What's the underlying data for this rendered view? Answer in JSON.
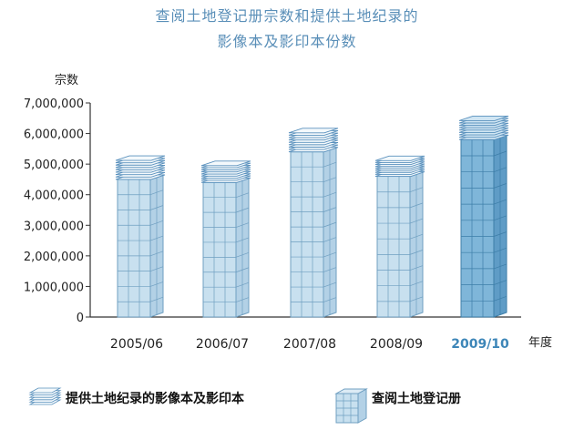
{
  "chart_data": {
    "type": "bar",
    "title_lines": [
      "查阅土地登记册宗数和提供土地纪录的",
      "影像本及影印本份数"
    ],
    "ylabel": "宗数",
    "xlabel": "年度",
    "ylim": [
      0,
      7000000
    ],
    "yticks": [
      0,
      1000000,
      2000000,
      3000000,
      4000000,
      5000000,
      6000000,
      7000000
    ],
    "ytick_labels": [
      "0",
      "1,000,000",
      "2,000,000",
      "3,000,000",
      "4,000,000",
      "5,000,000",
      "6,000,000",
      "7,000,000"
    ],
    "categories": [
      "2005/06",
      "2006/07",
      "2007/08",
      "2008/09",
      "2009/10"
    ],
    "highlight_category": "2009/10",
    "grid": false,
    "legend_position": "bottom",
    "series": [
      {
        "name": "查阅土地登记册",
        "values": [
          4500000,
          4400000,
          5400000,
          4600000,
          5800000
        ]
      },
      {
        "name": "提供土地纪录的影像本及影印本",
        "values": [
          700000,
          620000,
          700000,
          580000,
          700000
        ]
      }
    ],
    "colors": {
      "bar_face": "#c8e0ef",
      "bar_side": "#b3d1e6",
      "bar_top": "#dcebf5",
      "bar_line": "#6f9fc1",
      "bar_face_hl": "#7fb6d9",
      "bar_side_hl": "#5f9cc6",
      "bar_line_hl": "#3d7ea8",
      "stack_paper": "#f4f9fc",
      "stack_line": "#5a91bd",
      "stack_paper_hl": "#cfe5f3",
      "axis": "#333333",
      "title": "#5a8fb8"
    }
  }
}
